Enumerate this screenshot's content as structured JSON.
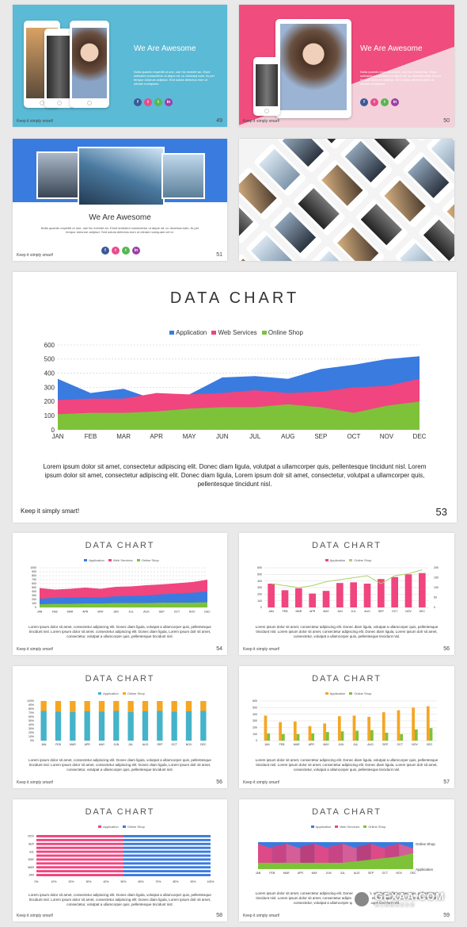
{
  "footer_text": "Keep it simply smart!",
  "slide49": {
    "title": "We Are Awesome",
    "text": "Nulla quando expediti ut une, use hic eveniet an. Elunt sutissimi consectetur ut atque sit, cu docessa eam, iis per tempor dolorum adipisci. Sed soluta delectus eum ut utinam numquam.",
    "number": "49"
  },
  "slide50": {
    "title": "We Are Awesome",
    "text": "Nulla quando expediti ut une, use hic eveniet an. Elunt sutissimi consectetur ut atque sit, cu docessa eam, iis per tempor dolorum adipisci. Sed soluta delectus eum ut utinam numquam.",
    "number": "50"
  },
  "slide51": {
    "title": "We Are Awesome",
    "text": "Nulla quando expediti ut une, use hic eveniet an. Elunt sutissimi consectetur ut atque sit, cu docessa eam, iis per tempor dolorum adipisci. Sed soluta delectus eum ut utinam numquam vel id.",
    "number": "51"
  },
  "social_icons": [
    "f",
    "t",
    "t",
    "in"
  ],
  "social_colors": [
    "#3b5998",
    "#e94b8b",
    "#55b84e",
    "#9c3fa6"
  ],
  "big_chart": {
    "title": "DATA CHART",
    "number": "53",
    "lorem": "Lorem ipsum dolor sit amet, consectetur adipiscing elit. Donec diam ligula, volutpat a ullamcorper quis, pellentesque tincidunt nisl.  Lorem ipsum dolor sit amet, consectetur adipiscing elit. Donec diam ligula, Lorem ipsum dolr sit amet, consectetur, volutpat a ullamcorper quis, pellentesque tincidunt nisl."
  },
  "small_lorem": "Lorem ipsum dolor sit amet, consectetur adipiscing elit. Donec diam ligula, volutpat a ullamcorper quis, pellentesque tincidunt nisl. Lorem ipsum dolor sit amet, consectetur adipiscing elit. Donec diam ligula, Lorem ipsum dolr sit amet, consectetur, volutpat a ullamcorper quis, pellentesque tincidunt nisl.",
  "small_charts": [
    {
      "title": "DATA CHART",
      "number": "54",
      "legend": [
        "Application",
        "Web Services",
        "Online Shop"
      ]
    },
    {
      "title": "DATA CHART",
      "number": "56",
      "legend": [
        "Application",
        "Online Shop"
      ]
    },
    {
      "title": "DATA CHART",
      "number": "56",
      "legend": [
        "Application",
        "Online Shop"
      ]
    },
    {
      "title": "DATA CHART",
      "number": "57",
      "legend": [
        "Application",
        "Online Shop"
      ]
    },
    {
      "title": "DATA CHART",
      "number": "58",
      "legend": [
        "Application",
        "Online Shop"
      ]
    },
    {
      "title": "DATA CHART",
      "number": "59",
      "legend": [
        "Application",
        "Web Services",
        "Online Shop"
      ]
    }
  ],
  "watermark": {
    "logo": "GFXAA.COM",
    "sub": "用 心 精 选 免 费 资 源"
  },
  "colors": {
    "blue": "#3a7be0",
    "pink": "#f0457e",
    "green": "#7ec23a",
    "cyan": "#4fb3d3",
    "orange": "#f5a623",
    "teal": "#45b3c9"
  },
  "chart_data": [
    {
      "type": "area",
      "categories": [
        "JAN",
        "FEB",
        "MAR",
        "APR",
        "MAY",
        "JUN",
        "JUL",
        "AUG",
        "SEP",
        "OCT",
        "NOV",
        "DEC"
      ],
      "series": [
        {
          "name": "Application",
          "values": [
            360,
            260,
            290,
            210,
            250,
            370,
            380,
            360,
            430,
            460,
            500,
            520
          ]
        },
        {
          "name": "Web Services",
          "values": [
            210,
            220,
            220,
            260,
            250,
            260,
            280,
            260,
            270,
            300,
            310,
            360
          ]
        },
        {
          "name": "Online Shop",
          "values": [
            110,
            120,
            120,
            130,
            150,
            160,
            160,
            180,
            160,
            120,
            170,
            200
          ]
        }
      ],
      "yticks": [
        0,
        100,
        200,
        300,
        400,
        500,
        600
      ],
      "ylim": [
        0,
        600
      ],
      "legend": "top"
    },
    {
      "type": "area",
      "categories": [
        "JAN",
        "FEB",
        "MAR",
        "APR",
        "MAY",
        "JUN",
        "JUL",
        "AUG",
        "SEP",
        "OCT",
        "NOV",
        "DEC"
      ],
      "series": [
        {
          "name": "Application",
          "values": [
            490,
            450,
            470,
            500,
            470,
            520,
            530,
            560,
            580,
            610,
            640,
            700
          ]
        },
        {
          "name": "Web Services",
          "values": [
            220,
            240,
            250,
            260,
            250,
            280,
            290,
            300,
            330,
            350,
            370,
            400
          ]
        },
        {
          "name": "Online Shop",
          "values": [
            80,
            90,
            90,
            100,
            100,
            110,
            110,
            110,
            120,
            120,
            120,
            130
          ]
        }
      ],
      "yticks": [
        0,
        100,
        200,
        300,
        400,
        500,
        600,
        700,
        800,
        900,
        1000
      ],
      "ylim": [
        0,
        1000
      ]
    },
    {
      "type": "bar",
      "categories": [
        "JAN",
        "FEB",
        "MAR",
        "APR",
        "MAY",
        "JUN",
        "JUL",
        "AUG",
        "SEP",
        "OCT",
        "NOV",
        "DEC"
      ],
      "series": [
        {
          "name": "Application",
          "values": [
            360,
            260,
            290,
            210,
            250,
            370,
            380,
            360,
            430,
            460,
            500,
            520
          ]
        },
        {
          "name": "Online Shop",
          "values": [
            120,
            110,
            100,
            110,
            130,
            140,
            150,
            160,
            120,
            160,
            170,
            190
          ]
        }
      ],
      "yticks": [
        0,
        100,
        200,
        300,
        400,
        500,
        600
      ],
      "yticks_right": [
        0,
        50,
        100,
        150,
        200
      ],
      "ylim": [
        0,
        600
      ]
    },
    {
      "type": "bar",
      "categories": [
        "JAN",
        "FEB",
        "MAR",
        "APR",
        "MAY",
        "JUN",
        "JUL",
        "AUG",
        "SEP",
        "OCT",
        "NOV",
        "DEC"
      ],
      "series": [
        {
          "name": "Application",
          "values": [
            75,
            73,
            72,
            74,
            73,
            75,
            72,
            74,
            75,
            73,
            74,
            75
          ]
        },
        {
          "name": "Online Shop",
          "values": [
            25,
            27,
            28,
            26,
            27,
            25,
            28,
            26,
            25,
            27,
            26,
            25
          ]
        }
      ],
      "yticks": [
        "0%",
        "10%",
        "20%",
        "30%",
        "40%",
        "50%",
        "60%",
        "70%",
        "80%",
        "90%",
        "100%"
      ],
      "ylim": [
        0,
        100
      ]
    },
    {
      "type": "bar",
      "categories": [
        "JAN",
        "FEB",
        "MAR",
        "APR",
        "MAY",
        "JUN",
        "JUL",
        "AUG",
        "SEP",
        "OCT",
        "NOV",
        "DEC"
      ],
      "series": [
        {
          "name": "Application",
          "values": [
            380,
            280,
            290,
            220,
            260,
            370,
            380,
            360,
            430,
            460,
            500,
            520
          ]
        },
        {
          "name": "Online Shop",
          "values": [
            110,
            100,
            100,
            110,
            130,
            140,
            150,
            160,
            120,
            100,
            170,
            190
          ]
        }
      ],
      "yticks": [
        0,
        100,
        200,
        300,
        400,
        500,
        600
      ],
      "ylim": [
        0,
        600
      ]
    },
    {
      "type": "bar",
      "orientation": "horizontal",
      "categories": [
        "JAN",
        "FEB",
        "MAR",
        "APR",
        "MAY",
        "JUN",
        "JUL",
        "AUG",
        "SEP",
        "OCT",
        "NOV"
      ],
      "series": [
        {
          "name": "Application",
          "values": [
            50,
            50,
            50,
            50,
            50,
            50,
            50,
            50,
            50,
            50,
            50
          ]
        },
        {
          "name": "Online Shop",
          "values": [
            50,
            50,
            50,
            50,
            50,
            50,
            50,
            50,
            50,
            50,
            50
          ]
        }
      ],
      "yticks_shown": [
        "JAN",
        "MAR",
        "MAY",
        "JUL",
        "SEP",
        "NOV"
      ],
      "xticks": [
        "0%",
        "10%",
        "20%",
        "30%",
        "40%",
        "50%",
        "60%",
        "70%",
        "80%",
        "90%",
        "100%"
      ],
      "xlim": [
        0,
        100
      ]
    },
    {
      "type": "area",
      "categories": [
        "JAN",
        "FEB",
        "MAR",
        "APR",
        "MAY",
        "JUN",
        "JUL",
        "AUG",
        "SEP",
        "OCT",
        "NOV",
        "DEC"
      ],
      "series": [
        {
          "name": "Online Shop",
          "values": [
            30,
            30,
            30,
            30,
            30,
            30,
            30,
            30,
            30,
            30,
            30,
            30
          ]
        },
        {
          "name": "Application",
          "values": [
            8,
            8,
            8,
            8,
            8,
            8,
            8,
            10,
            12,
            14,
            16,
            20
          ]
        }
      ],
      "labels_right": [
        "Online Shop",
        "Application"
      ]
    }
  ]
}
